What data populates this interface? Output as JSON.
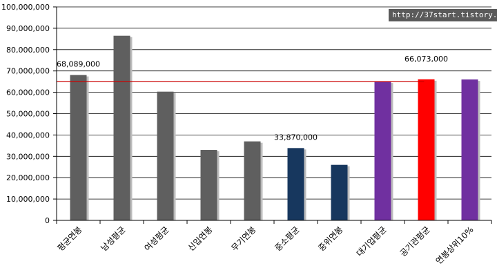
{
  "chart_data": {
    "type": "bar",
    "categories": [
      "평균연봉",
      "남성평균",
      "여성평균",
      "신입연봉",
      "무기연봉",
      "중소평균",
      "중위연봉",
      "대기업평균",
      "공기관평균",
      "연봉상위10%"
    ],
    "values": [
      68089000,
      86500000,
      60300000,
      33000000,
      37000000,
      33870000,
      26000000,
      65000000,
      66073000,
      66000000
    ],
    "bar_colors": [
      "#5f5f5f",
      "#5f5f5f",
      "#5f5f5f",
      "#5f5f5f",
      "#5f5f5f",
      "#17375e",
      "#17375e",
      "#7030a0",
      "#ff0000",
      "#7030a0"
    ],
    "y_tick_labels": [
      "0",
      "10,000,000",
      "20,000,000",
      "30,000,000",
      "40,000,000",
      "50,000,000",
      "60,000,000",
      "70,000,000",
      "80,000,000",
      "90,000,000",
      "100,000,000"
    ],
    "ylim": [
      0,
      100000000
    ],
    "reference_line": {
      "value": 65000000,
      "color": "#cc0000"
    },
    "annotations": [
      {
        "text": "68,089,000",
        "category": 0
      },
      {
        "text": "33,870,000",
        "category": 5
      },
      {
        "text": "66,073,000",
        "category": 8
      }
    ],
    "grid": true,
    "title": "",
    "xlabel": "",
    "ylabel": ""
  },
  "watermark": "http://37start.tistory.com",
  "colors": {
    "grid": "#000000",
    "gray_bar": "#5f5f5f",
    "navy_bar": "#17375e",
    "purple_bar": "#7030a0",
    "red_bar": "#ff0000"
  }
}
